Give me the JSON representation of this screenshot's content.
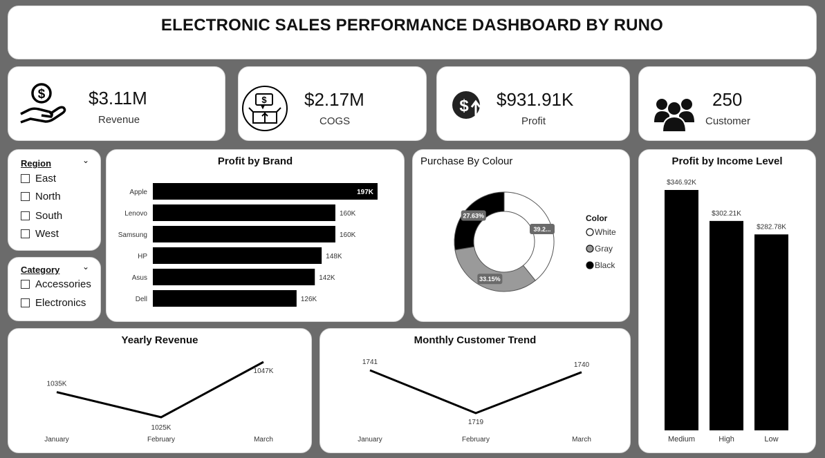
{
  "header": {
    "title": "ELECTRONIC SALES PERFORMANCE DASHBOARD BY RUNO"
  },
  "kpis": {
    "revenue": {
      "value": "$3.11M",
      "label": "Revenue",
      "icon": "money-hand-icon"
    },
    "cogs": {
      "value": "$2.17M",
      "label": "COGS",
      "icon": "box-dollar-icon"
    },
    "profit": {
      "value": "$931.91K",
      "label": "Profit",
      "icon": "dollar-up-arrow-icon"
    },
    "customer": {
      "value": "250",
      "label": "Customer",
      "icon": "people-group-icon"
    }
  },
  "slicers": {
    "region": {
      "title": "Region",
      "options": [
        "East",
        "North",
        "South",
        "West"
      ]
    },
    "category": {
      "title": "Category",
      "options": [
        "Accessories",
        "Electronics"
      ]
    }
  },
  "chart_data": [
    {
      "id": "profit_by_brand",
      "type": "bar",
      "orientation": "horizontal",
      "title": "Profit by Brand",
      "categories": [
        "Apple",
        "Lenovo",
        "Samsung",
        "HP",
        "Asus",
        "Dell"
      ],
      "values": [
        197,
        160,
        160,
        148,
        142,
        126
      ],
      "labels": [
        "197K",
        "160K",
        "160K",
        "148K",
        "142K",
        "126K"
      ],
      "color": "#000000"
    },
    {
      "id": "purchase_by_colour",
      "type": "pie",
      "donut": true,
      "title": "Purchase By Colour",
      "legend_title": "Color",
      "legend_position": "right",
      "slices": [
        {
          "name": "White",
          "value": 39.2,
          "label": "39.2...",
          "color": "#ffffff"
        },
        {
          "name": "Gray",
          "value": 33.15,
          "label": "33.15%",
          "color": "#9a9a9a"
        },
        {
          "name": "Black",
          "value": 27.63,
          "label": "27.63%",
          "color": "#000000"
        }
      ]
    },
    {
      "id": "profit_by_income_level",
      "type": "bar",
      "orientation": "vertical",
      "title": "Profit by Income Level",
      "categories": [
        "Medium",
        "High",
        "Low"
      ],
      "values": [
        346.92,
        302.21,
        282.78
      ],
      "labels": [
        "$346.92K",
        "$302.21K",
        "$282.78K"
      ],
      "color": "#000000"
    },
    {
      "id": "yearly_revenue",
      "type": "line",
      "title": "Yearly Revenue",
      "categories": [
        "January",
        "February",
        "March"
      ],
      "values": [
        1035,
        1025,
        1047
      ],
      "labels": [
        "1035K",
        "1025K",
        "1047K"
      ]
    },
    {
      "id": "monthly_customer_trend",
      "type": "line",
      "title": "Monthly Customer Trend",
      "categories": [
        "January",
        "February",
        "March"
      ],
      "values": [
        1741,
        1719,
        1740
      ],
      "labels": [
        "1741",
        "1719",
        "1740"
      ]
    }
  ]
}
